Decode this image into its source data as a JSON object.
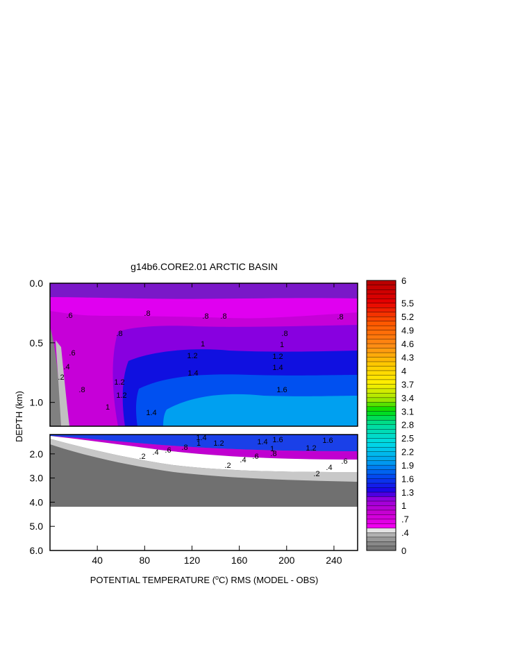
{
  "chart_data": {
    "type": "heatmap",
    "title": "g14b6.CORE2.01 ARCTIC BASIN",
    "xlabel_pre": "POTENTIAL TEMPERATURE (",
    "xlabel_sup": "o",
    "xlabel_post": "C) RMS (MODEL - OBS)",
    "ylabel": "DEPTH (km)",
    "x_ticks": [
      "40",
      "80",
      "120",
      "160",
      "200",
      "240"
    ],
    "x_tick_values": [
      40,
      80,
      120,
      160,
      200,
      240
    ],
    "xlim": [
      0,
      260
    ],
    "upper_panel": {
      "ylim": [
        0,
        1.2
      ],
      "y_ticks": [
        "0.0",
        "0.5",
        "1.0"
      ],
      "y_tick_values": [
        0,
        0.5,
        1.0
      ]
    },
    "lower_panel": {
      "ylim": [
        1.2,
        6.0
      ],
      "y_ticks": [
        "2.0",
        "3.0",
        "4.0",
        "5.0",
        "6.0"
      ],
      "y_tick_values": [
        2,
        3,
        4,
        5,
        6
      ]
    },
    "colorbar": {
      "labels": [
        "6",
        "5.5",
        "5.2",
        "4.9",
        "4.6",
        "4.3",
        "4",
        "3.7",
        "3.4",
        "3.1",
        "2.8",
        "2.5",
        "2.2",
        "1.9",
        "1.6",
        "1.3",
        "1",
        ".7",
        ".4",
        "0"
      ],
      "label_values": [
        6,
        5.5,
        5.2,
        4.9,
        4.6,
        4.3,
        4,
        3.7,
        3.4,
        3.1,
        2.8,
        2.5,
        2.2,
        1.9,
        1.6,
        1.3,
        1,
        0.7,
        0.4,
        0
      ]
    },
    "contour_labels_upper": [
      ".6",
      ".8",
      ".8",
      ".8",
      ".8",
      ".8",
      ".8",
      "1",
      "1",
      "1.2",
      "1.2",
      "1.2",
      "1.4",
      "1.4",
      "1.6",
      "1.4",
      "1.2",
      "1",
      ".8",
      ".6",
      ".4",
      ".2"
    ],
    "contour_labels_lower": [
      "1.6",
      "1.4",
      "1.2",
      "1",
      ".8",
      ".6",
      ".4",
      ".2",
      ".2",
      ".4",
      ".6",
      ".8",
      "1",
      "1.2",
      "1.4",
      "1.6",
      ".6",
      ".4",
      ".2"
    ]
  }
}
